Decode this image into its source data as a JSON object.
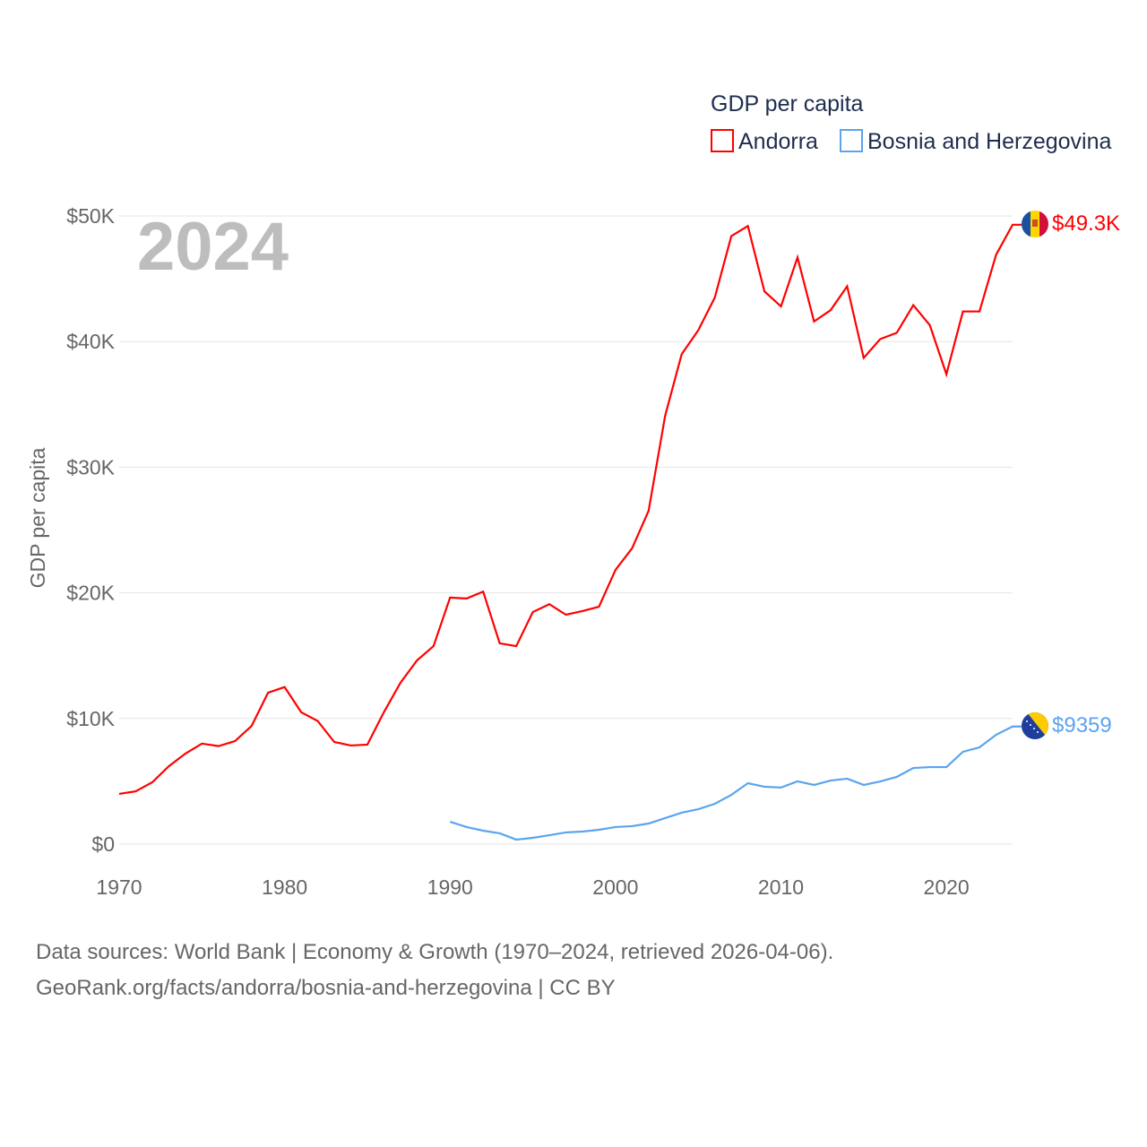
{
  "chart_data": {
    "type": "line",
    "title": "GDP per capita",
    "ylabel": "GDP per capita",
    "xlabel": "",
    "highlight_year": "2024",
    "xlim": [
      1970,
      2024
    ],
    "ylim": [
      0,
      50000
    ],
    "x_ticks": [
      1970,
      1980,
      1990,
      2000,
      2010,
      2020
    ],
    "x_tick_labels": [
      "1970",
      "1980",
      "1990",
      "2000",
      "2010",
      "2020"
    ],
    "y_ticks": [
      0,
      10000,
      20000,
      30000,
      40000,
      50000
    ],
    "y_tick_labels": [
      "$0",
      "$10K",
      "$20K",
      "$30K",
      "$40K",
      "$50K"
    ],
    "grid": true,
    "legend_position": "top-right",
    "series": [
      {
        "name": "Andorra",
        "color": "#ff0000",
        "end_label": "$49.3K",
        "start_year": 1970,
        "values": [
          4000,
          4200,
          4920,
          6200,
          7200,
          8000,
          7800,
          8200,
          9400,
          12050,
          12500,
          10500,
          9800,
          8130,
          7850,
          7920,
          10500,
          12840,
          14620,
          15760,
          19620,
          19550,
          20100,
          15980,
          15760,
          18470,
          19100,
          18260,
          18550,
          18900,
          21830,
          23540,
          26530,
          34100,
          39000,
          40900,
          43500,
          48400,
          49200,
          44000,
          42800,
          46700,
          41600,
          42500,
          44400,
          38700,
          40200,
          40700,
          42900,
          41300,
          37400,
          42400,
          42400,
          46900,
          49300
        ]
      },
      {
        "name": "Bosnia and Herzegovina",
        "color": "#5ba4ee",
        "end_label": "$9359",
        "start_year": 1990,
        "values": [
          1780,
          1360,
          1070,
          860,
          360,
          500,
          710,
          930,
          1000,
          1140,
          1360,
          1430,
          1640,
          2070,
          2500,
          2780,
          3210,
          3920,
          4850,
          4570,
          4500,
          5000,
          4710,
          5060,
          5210,
          4710,
          4990,
          5350,
          6060,
          6130,
          6130,
          7350,
          7700,
          8700,
          9359
        ]
      }
    ]
  },
  "source": {
    "line1": "Data sources: World Bank | Economy & Growth (1970–2024, retrieved 2026-04-06).",
    "line2": "GeoRank.org/facts/andorra/bosnia-and-herzegovina | CC BY"
  }
}
